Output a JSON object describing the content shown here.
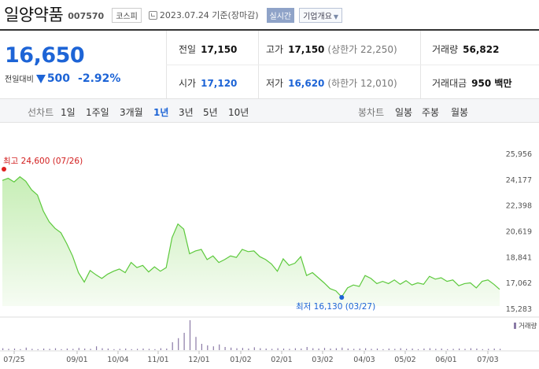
{
  "header": {
    "title": "일양약품",
    "code": "007570",
    "market": "코스피",
    "date": "2023.07.24 기준(장마감)",
    "realtime_label": "실시간",
    "corp_label": "기업개요"
  },
  "quote": {
    "price": "16,650",
    "change_label": "전일대비",
    "change_amount": "500",
    "change_pct": "-2.92%",
    "prev_label": "전일",
    "prev_value": "17,150",
    "high_label": "고가",
    "high_value": "17,150",
    "upper_limit": "(상한가 22,250)",
    "volume_label": "거래량",
    "volume_value": "56,822",
    "open_label": "시가",
    "open_value": "17,120",
    "low_label": "저가",
    "low_value": "16,620",
    "lower_limit": "(하한가 12,010)",
    "amount_label": "거래대금",
    "amount_value": "950 백만"
  },
  "periods": {
    "line_label": "선차트",
    "line_items": [
      "1일",
      "1주일",
      "3개월",
      "1년",
      "3년",
      "5년",
      "10년"
    ],
    "active": "1년",
    "candle_label": "봉차트",
    "candle_items": [
      "일봉",
      "주봉",
      "월봉"
    ]
  },
  "colors": {
    "accent": "#1d64d6",
    "down": "#1d64d6",
    "line": "#5cc93c",
    "fill": "#e6f6df",
    "volume": "#8a7aa6"
  },
  "chart_data": {
    "type": "area",
    "max_label": "최고 24,600 (07/26)",
    "min_label": "최저 16,130 (03/27)",
    "volume_label": "거래량",
    "yticks": [
      "25,956",
      "24,177",
      "22,398",
      "20,619",
      "18,841",
      "17,062",
      "15,283"
    ],
    "ylim": [
      15283,
      25956
    ],
    "x_labels": [
      "07/25",
      "09/01",
      "10/04",
      "11/01",
      "12/01",
      "01/02",
      "02/01",
      "03/02",
      "04/03",
      "05/02",
      "06/01",
      "07/03"
    ],
    "x": [
      "07/25",
      "07/28",
      "08/02",
      "08/07",
      "08/10",
      "08/14",
      "08/18",
      "08/23",
      "08/26",
      "08/31",
      "09/05",
      "09/08",
      "09/14",
      "09/19",
      "09/22",
      "09/27",
      "09/30",
      "10/05",
      "10/11",
      "10/14",
      "10/19",
      "10/24",
      "10/27",
      "11/01",
      "11/04",
      "11/09",
      "11/14",
      "11/17",
      "11/22",
      "11/25",
      "11/30",
      "12/01",
      "12/05",
      "12/08",
      "12/13",
      "12/16",
      "12/21",
      "12/27",
      "12/30",
      "01/05",
      "01/10",
      "01/13",
      "01/18",
      "01/23",
      "01/27",
      "02/01",
      "02/06",
      "02/09",
      "02/14",
      "02/17",
      "02/22",
      "02/27",
      "03/02",
      "03/07",
      "03/10",
      "03/15",
      "03/20",
      "03/23",
      "03/27",
      "03/30",
      "04/05",
      "04/10",
      "04/13",
      "04/18",
      "04/21",
      "04/26",
      "05/02",
      "05/08",
      "05/11",
      "05/16",
      "05/19",
      "05/24",
      "05/30",
      "06/02",
      "06/08",
      "06/13",
      "06/16",
      "06/21",
      "06/26",
      "06/29",
      "07/04",
      "07/07",
      "07/12",
      "07/17",
      "07/20",
      "07/24"
    ],
    "values": [
      24150,
      24300,
      24050,
      24400,
      24100,
      23500,
      23150,
      22050,
      21300,
      20850,
      20550,
      19800,
      18950,
      17800,
      17150,
      17950,
      17650,
      17400,
      17700,
      17900,
      18050,
      17800,
      18500,
      18150,
      18300,
      17850,
      18200,
      17900,
      18150,
      20200,
      21150,
      20800,
      19100,
      19300,
      19400,
      18700,
      18950,
      18500,
      18700,
      18950,
      18850,
      19400,
      19250,
      19300,
      18900,
      18700,
      18400,
      17900,
      18750,
      18300,
      18450,
      18900,
      17600,
      17800,
      17450,
      17100,
      16700,
      16550,
      16130,
      16750,
      16950,
      16850,
      17600,
      17400,
      17050,
      17200,
      17050,
      17300,
      17000,
      17250,
      16950,
      17100,
      17000,
      17550,
      17350,
      17450,
      17200,
      17300,
      16900,
      17050,
      17100,
      16750,
      17200,
      17300,
      17000,
      16650
    ],
    "volume_bars": [
      0.06,
      0.04,
      0.05,
      0.03,
      0.08,
      0.04,
      0.03,
      0.05,
      0.04,
      0.06,
      0.03,
      0.05,
      0.04,
      0.07,
      0.05,
      0.04,
      0.12,
      0.06,
      0.05,
      0.03,
      0.04,
      0.05,
      0.03,
      0.04,
      0.05,
      0.04,
      0.03,
      0.06,
      0.05,
      0.25,
      0.38,
      0.55,
      0.95,
      0.42,
      0.2,
      0.15,
      0.12,
      0.18,
      0.1,
      0.08,
      0.06,
      0.07,
      0.05,
      0.09,
      0.06,
      0.05,
      0.04,
      0.06,
      0.05,
      0.04,
      0.06,
      0.05,
      0.1,
      0.06,
      0.05,
      0.07,
      0.05,
      0.06,
      0.08,
      0.05,
      0.04,
      0.05,
      0.06,
      0.04,
      0.05,
      0.03,
      0.05,
      0.04,
      0.06,
      0.04,
      0.05,
      0.03,
      0.05,
      0.06,
      0.04,
      0.05,
      0.03,
      0.04,
      0.05,
      0.04,
      0.06,
      0.05,
      0.03,
      0.04,
      0.05,
      0.04
    ]
  }
}
